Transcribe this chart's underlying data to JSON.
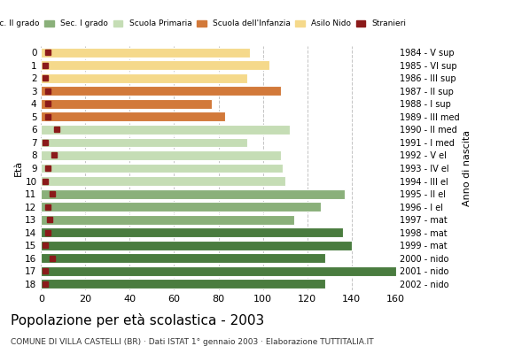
{
  "ages": [
    18,
    17,
    16,
    15,
    14,
    13,
    12,
    11,
    10,
    9,
    8,
    7,
    6,
    5,
    4,
    3,
    2,
    1,
    0
  ],
  "values": [
    128,
    160,
    128,
    140,
    136,
    114,
    126,
    137,
    110,
    109,
    108,
    93,
    112,
    83,
    77,
    108,
    93,
    103,
    94
  ],
  "stranieri_values": [
    2,
    2,
    5,
    2,
    3,
    4,
    3,
    5,
    2,
    3,
    6,
    2,
    7,
    3,
    3,
    3,
    2,
    2,
    3
  ],
  "right_labels": [
    "1984 - V sup",
    "1985 - VI sup",
    "1986 - III sup",
    "1987 - II sup",
    "1988 - I sup",
    "1989 - III med",
    "1990 - II med",
    "1991 - I med",
    "1992 - V el",
    "1993 - IV el",
    "1994 - III el",
    "1995 - II el",
    "1996 - I el",
    "1997 - mat",
    "1998 - mat",
    "1999 - mat",
    "2000 - nido",
    "2001 - nido",
    "2002 - nido"
  ],
  "age_color_map": {
    "18": "Sec. II grado",
    "17": "Sec. II grado",
    "16": "Sec. II grado",
    "15": "Sec. II grado",
    "14": "Sec. II grado",
    "13": "Sec. I grado",
    "12": "Sec. I grado",
    "11": "Sec. I grado",
    "10": "Scuola Primaria",
    "9": "Scuola Primaria",
    "8": "Scuola Primaria",
    "7": "Scuola Primaria",
    "6": "Scuola Primaria",
    "5": "Scuola dell'Infanzia",
    "4": "Scuola dell'Infanzia",
    "3": "Scuola dell'Infanzia",
    "2": "Asilo Nido",
    "1": "Asilo Nido",
    "0": "Asilo Nido"
  },
  "color_map": {
    "Sec. II grado": "#4a7c3f",
    "Sec. I grado": "#8ab07a",
    "Scuola Primaria": "#c5ddb5",
    "Scuola dell'Infanzia": "#d2793a",
    "Asilo Nido": "#f5d98b"
  },
  "stranieri_color": "#8b1a1a",
  "legend_labels": [
    "Sec. II grado",
    "Sec. I grado",
    "Scuola Primaria",
    "Scuola dell'Infanzia",
    "Asilo Nido",
    "Stranieri"
  ],
  "title": "Popolazione per età scolastica - 2003",
  "subtitle": "COMUNE DI VILLA CASTELLI (BR) · Dati ISTAT 1° gennaio 2003 · Elaborazione TUTTITALIA.IT",
  "ylabel_left": "Età",
  "ylabel_right": "Anno di nascita",
  "xlim": [
    0,
    160
  ],
  "xticks": [
    0,
    20,
    40,
    60,
    80,
    100,
    120,
    140,
    160
  ],
  "background_color": "#ffffff",
  "grid_color": "#aaaaaa"
}
